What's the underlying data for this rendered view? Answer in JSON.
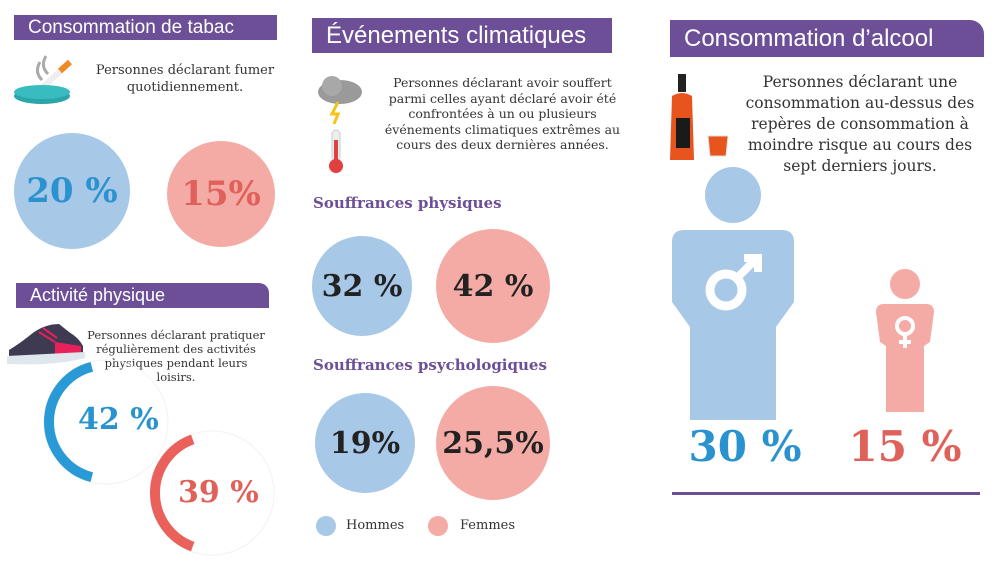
{
  "colors": {
    "purple": "#6c4f96",
    "men": "#a8c8e8",
    "women": "#f4aba6",
    "men_text": "#2a93cf",
    "women_text": "#e0605a"
  },
  "tabac": {
    "title": "Consommation de tabac",
    "icon": "ashtray-icon",
    "description": "Personnes déclarant fumer quotidiennement.",
    "hommes": "20 %",
    "femmes": "15%"
  },
  "activite": {
    "title": "Activité physique",
    "icon": "sneaker-icon",
    "description": "Personnes déclarant pratiquer régulièrement des activités physiques pendant leurs loisirs.",
    "hommes": "42 %",
    "femmes": "39 %",
    "hommes_value": 42,
    "femmes_value": 39
  },
  "climat": {
    "title": "Événements climatiques",
    "icon": "storm-cloud-thermometer-icon",
    "description": "Personnes déclarant avoir souffert parmi celles ayant déclaré avoir été confrontées à un ou plusieurs événements climatiques extrêmes au cours des deux dernières années.",
    "physiques": {
      "label": "Souffrances physiques",
      "hommes": "32 %",
      "femmes": "42 %"
    },
    "psychologiques": {
      "label": "Souffrances psychologiques",
      "hommes": "19%",
      "femmes": "25,5%"
    },
    "legend": {
      "hommes": "Hommes",
      "femmes": "Femmes"
    }
  },
  "alcool": {
    "title": "Consommation d’alcool",
    "icon": "bottle-glass-icon",
    "description": "Personnes déclarant une consommation au-dessus des repères de consommation à moindre risque au cours des sept derniers jours.",
    "hommes": "30 %",
    "femmes": "15 %"
  }
}
